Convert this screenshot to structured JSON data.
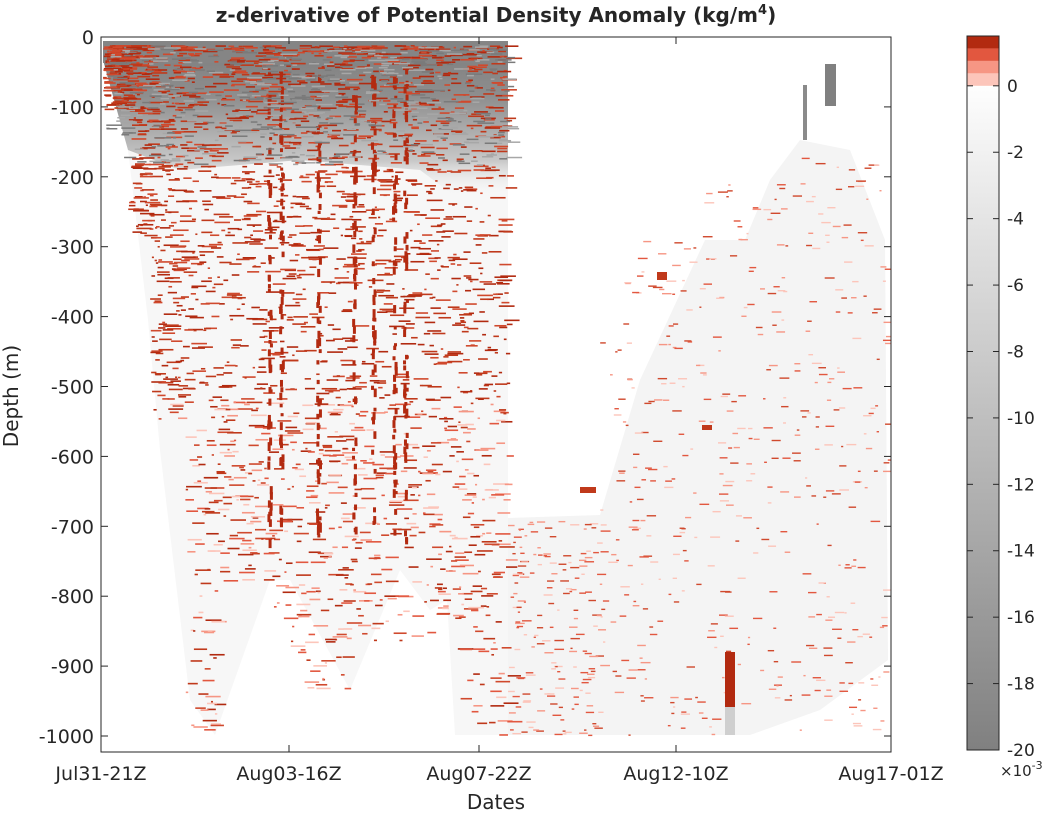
{
  "chart_data": {
    "type": "heatmap",
    "title": "z-derivative of Potential Density Anomaly (kg/m",
    "title_superscript": "4",
    "title_close": ")",
    "xlabel": "Dates",
    "ylabel": "Depth  (m)",
    "x_ticks": [
      "Jul31-21Z",
      "Aug03-16Z",
      "Aug07-22Z",
      "Aug12-10Z",
      "Aug17-01Z"
    ],
    "y_ticks": [
      0,
      -100,
      -200,
      -300,
      -400,
      -500,
      -600,
      -700,
      -800,
      -900,
      -1000
    ],
    "ylim": [
      -1025,
      0
    ],
    "colorbar": {
      "ticks": [
        0,
        -2,
        -4,
        -6,
        -8,
        -10,
        -12,
        -14,
        -16,
        -18,
        -20
      ],
      "range": [
        -20,
        1.5
      ],
      "exponent_base": "×10",
      "exponent": "-3",
      "negative_gradient": [
        "#808080",
        "#ffffff"
      ],
      "positive_steps": [
        "#fcc5ba",
        "#f69684",
        "#e2573f",
        "#b22a10"
      ]
    },
    "colors": {
      "axis": "#262626",
      "positive": "#c0391b",
      "negative": "#808080"
    },
    "coverage_polygons": {
      "dense_region": [
        [
          "Jul31-21Z",
          0
        ],
        [
          "Aug07-22Z",
          0
        ],
        [
          "Aug07-22Z",
          -1000
        ],
        [
          "Aug07-22Z",
          -600
        ]
      ]
    },
    "grid": false,
    "legend": "colorbar-right"
  }
}
